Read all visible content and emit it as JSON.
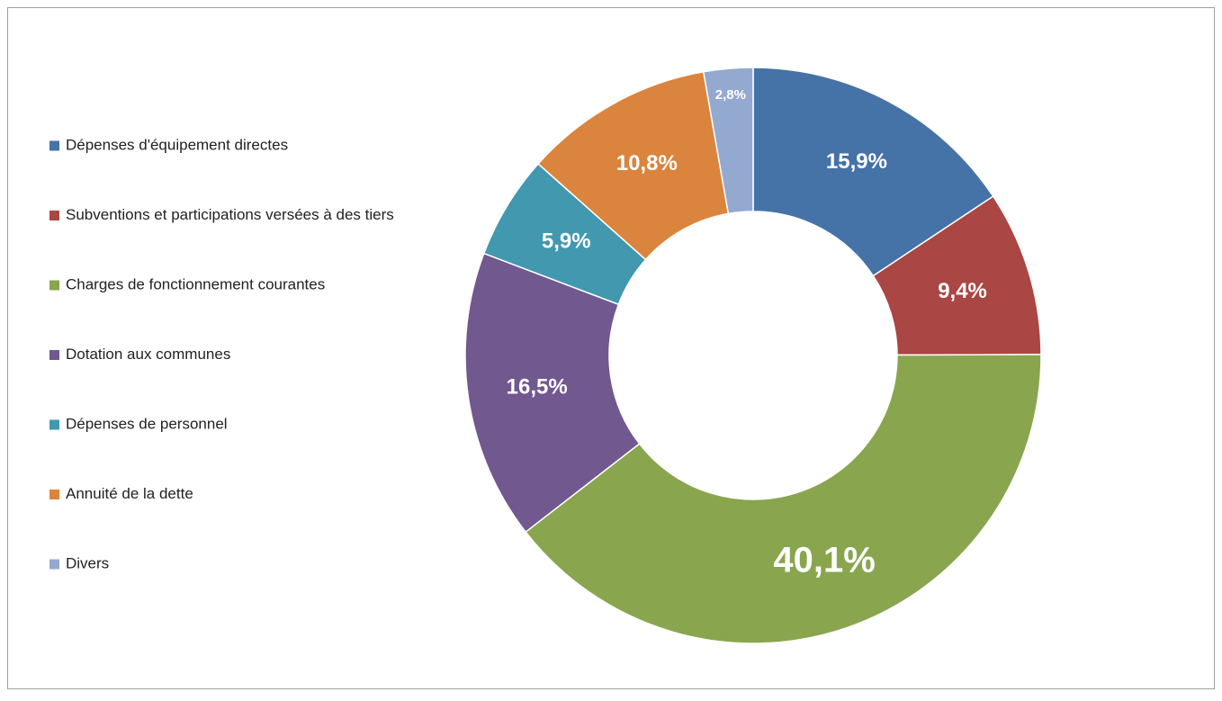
{
  "chart_data": {
    "type": "donut",
    "categories": [
      "Dépenses d'équipement directes",
      "Subventions et participations versées à des tiers",
      "Charges de fonctionnement courantes",
      "Dotation aux communes",
      "Dépenses de personnel",
      "Annuité de la dette",
      "Divers"
    ],
    "values": [
      15.9,
      9.4,
      40.1,
      16.5,
      5.9,
      10.8,
      2.8
    ],
    "value_labels": [
      "15,9%",
      "9,4%",
      "40,1%",
      "16,5%",
      "5,9%",
      "10,8%",
      "2,8%"
    ],
    "colors": [
      "#4572a7",
      "#aa4643",
      "#89a54e",
      "#71588f",
      "#4198af",
      "#db843d",
      "#93a9cf"
    ],
    "legend": "left"
  }
}
